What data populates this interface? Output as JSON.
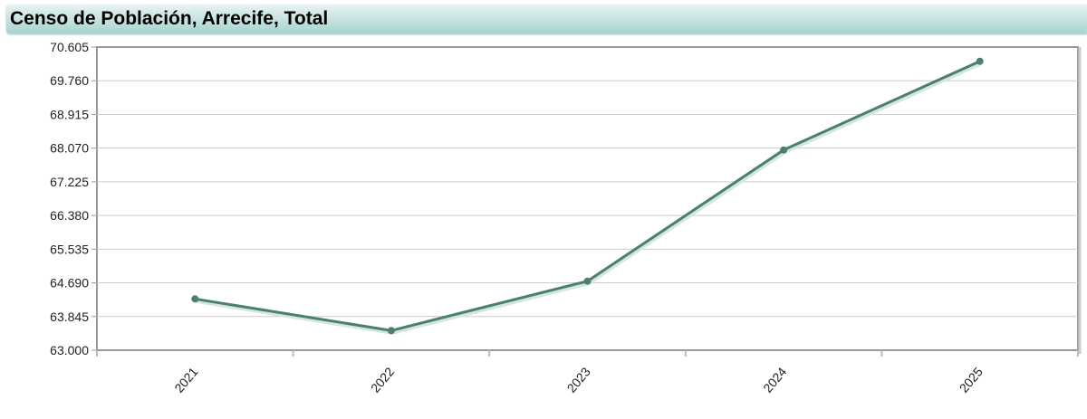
{
  "title": "Censo de Población, Arrecife, Total",
  "chart_data": {
    "type": "line",
    "title": "Censo de Población, Arrecife, Total",
    "categories": [
      "2021",
      "2022",
      "2023",
      "2024",
      "2025"
    ],
    "values": [
      64287,
      63493,
      64732,
      68024,
      70248
    ],
    "ylim": [
      63000,
      70605
    ],
    "yticks": [
      "63.000",
      "63.845",
      "64.690",
      "65.535",
      "66.380",
      "67.225",
      "68.070",
      "68.915",
      "69.760",
      "70.605"
    ],
    "grid": true,
    "line_color": "#4a7f73"
  }
}
